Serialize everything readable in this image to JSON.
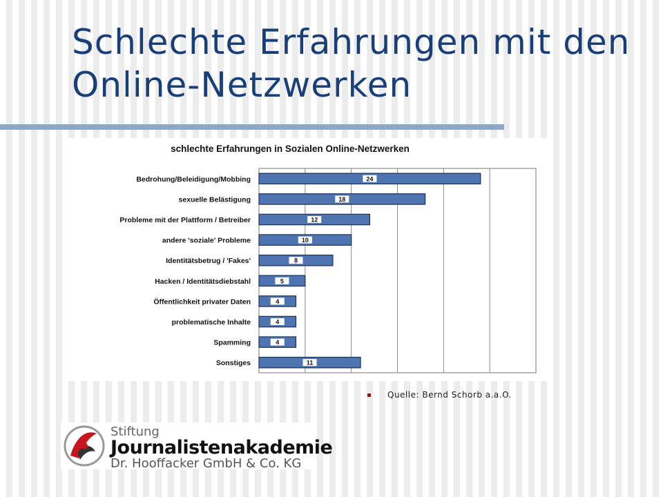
{
  "slide": {
    "title": "Schlechte Erfahrungen mit den Online-Netzwerken",
    "source_label": "Quelle: Bernd Schorb a.a.O."
  },
  "logo": {
    "line1": "Stiftung",
    "line2": "Journalistenakademie",
    "line3": "Dr. Hooffacker GmbH & Co. KG"
  },
  "chart_data": {
    "type": "bar",
    "orientation": "horizontal",
    "title": "schlechte Erfahrungen in Sozialen Online-Netzwerken",
    "categories": [
      "Bedrohung/Beleidigung/Mobbing",
      "sexuelle Belästigung",
      "Probleme mit der Plattform / Betreiber",
      "andere 'soziale' Probleme",
      "Identitätsbetrug / 'Fakes'",
      "Hacken / Identitätsdiebstahl",
      "Öffentlichkeit privater Daten",
      "problematische Inhalte",
      "Spamming",
      "Sonstiges"
    ],
    "values": [
      24,
      18,
      12,
      10,
      8,
      5,
      4,
      4,
      4,
      11
    ],
    "xlim": [
      0,
      30
    ],
    "grid": true,
    "bar_color": "#4f74b2",
    "bar_label_bg": "#ffffff"
  }
}
